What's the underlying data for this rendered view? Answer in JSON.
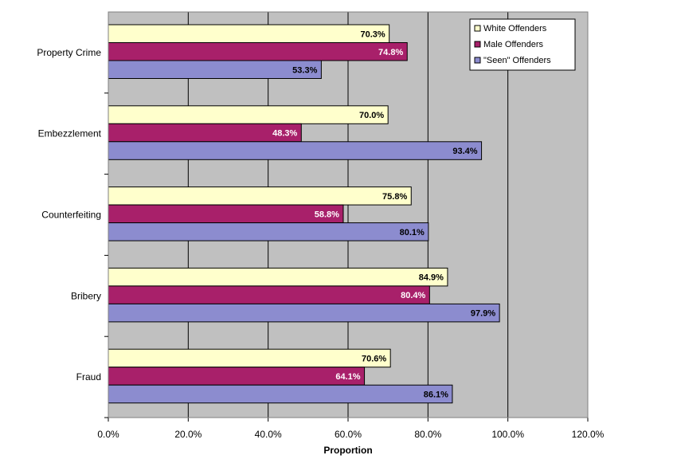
{
  "chart_data": {
    "type": "bar",
    "orientation": "horizontal",
    "categories": [
      "Property Crime",
      "Embezzlement",
      "Counterfeiting",
      "Bribery",
      "Fraud"
    ],
    "series": [
      {
        "name": "White Offenders",
        "color": "#ffffcc",
        "label_color": "#000000",
        "values": [
          70.3,
          70.0,
          75.8,
          84.9,
          70.6
        ],
        "labels": [
          "70.3%",
          "70.0%",
          "75.8%",
          "84.9%",
          "70.6%"
        ]
      },
      {
        "name": "Male Offenders",
        "color": "#a8206a",
        "label_color": "#ffffff",
        "values": [
          74.8,
          48.3,
          58.8,
          80.4,
          64.1
        ],
        "labels": [
          "74.8%",
          "48.3%",
          "58.8%",
          "80.4%",
          "64.1%"
        ]
      },
      {
        "name": "\"Seen\" Offenders",
        "color": "#8c8ccf",
        "label_color": "#000000",
        "values": [
          53.3,
          93.4,
          80.1,
          97.9,
          86.1
        ],
        "labels": [
          "53.3%",
          "93.4%",
          "80.1%",
          "97.9%",
          "86.1%"
        ]
      }
    ],
    "xlabel": "Proportion",
    "ylabel": "",
    "xlim": [
      0,
      120
    ],
    "xticks": [
      0,
      20,
      40,
      60,
      80,
      100,
      120
    ],
    "xtick_labels": [
      "0.0%",
      "20.0%",
      "40.0%",
      "60.0%",
      "80.0%",
      "100.0%",
      "120.0%"
    ],
    "grid": true,
    "legend_position": "top-right",
    "plot_background": "#c0c0c0"
  }
}
